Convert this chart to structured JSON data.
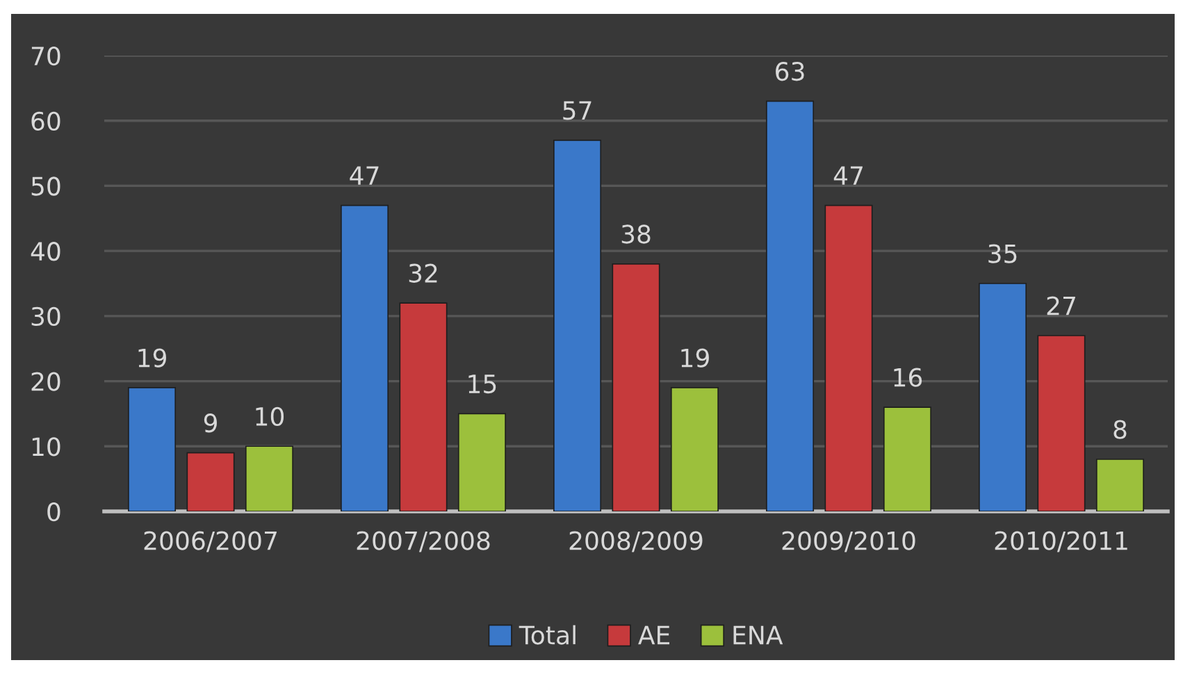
{
  "chart_data": {
    "type": "bar",
    "categories": [
      "2006/2007",
      "2007/2008",
      "2008/2009",
      "2009/2010",
      "2010/2011"
    ],
    "series": [
      {
        "name": "Total",
        "color": "#3a78c9",
        "values": [
          19,
          47,
          57,
          63,
          35
        ]
      },
      {
        "name": "AE",
        "color": "#c63a3c",
        "values": [
          9,
          32,
          38,
          47,
          27
        ]
      },
      {
        "name": "ENA",
        "color": "#9cc03c",
        "values": [
          10,
          15,
          19,
          16,
          8
        ]
      }
    ],
    "ylim": [
      0,
      70
    ],
    "yticks": [
      0,
      10,
      20,
      30,
      40,
      50,
      60,
      70
    ],
    "grid": "y",
    "legend": "bottom",
    "data_labels": true
  }
}
